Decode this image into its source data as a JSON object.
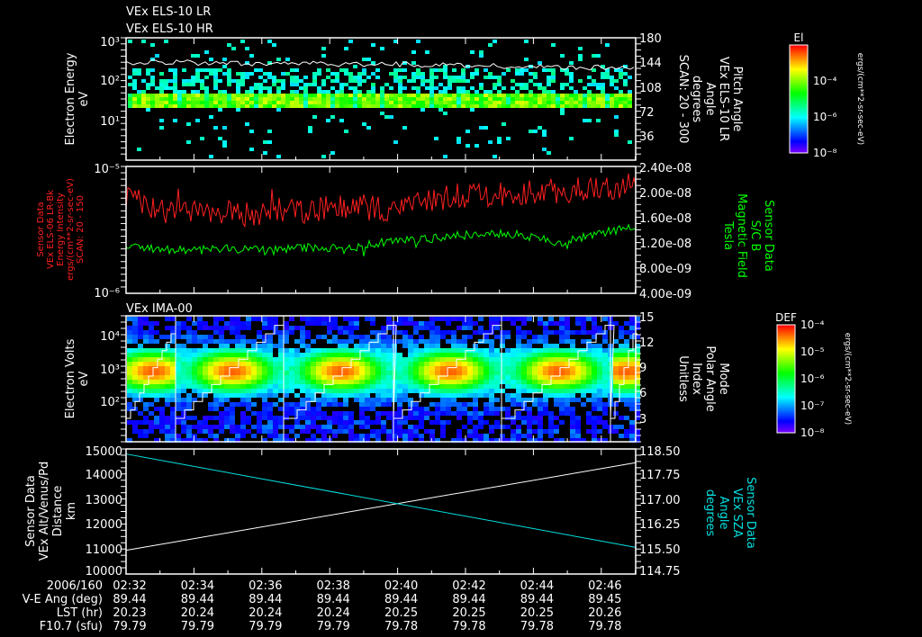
{
  "titles": {
    "line1": "VEx ELS-10 LR",
    "line2": "VEx ELS-10 HR",
    "panel3": "VEx IMA-00"
  },
  "colors": {
    "red": "#ff2020",
    "green": "#00ff00",
    "cyan": "#00e0e0",
    "white": "#ffffff"
  },
  "chart_data": [
    {
      "type": "heatmap",
      "name": "ELS electron spectrogram",
      "ylabel": [
        "Electron Energy",
        "eV"
      ],
      "yticks": [
        "10³",
        "10²",
        "10¹"
      ],
      "ylim_log10": [
        0,
        3
      ],
      "right_label": [
        "Pitch Angle",
        "VEx ELS-10 LR",
        "Angle",
        "degrees",
        "SCAN: 20 - 300"
      ],
      "right_ticks": [
        "180",
        "144",
        "108",
        "72",
        "36"
      ],
      "band_eV": [
        20,
        45
      ],
      "upper_line_eV": [
        240,
        250,
        245,
        235,
        240,
        230,
        225,
        230,
        220,
        215,
        205,
        200,
        190,
        185,
        180
      ],
      "colorbar": {
        "title": "El",
        "ticks": [
          "10⁻⁴",
          "10⁻⁶",
          "10⁻⁸"
        ],
        "label": "ergs/(cm**2-sr-sec-eV)"
      }
    },
    {
      "type": "line",
      "name": "ELS energy intensity and magnetic field",
      "left_label": [
        "Sensor Data",
        "VEx ELS-06 LR-Bk",
        "Energy Intensity",
        "ergs/(cm**2-sr-sec-eV)",
        "SCAN: 20 - 150"
      ],
      "left_ticks": [
        "10⁻⁵",
        "10⁻⁶"
      ],
      "right_label": [
        "Sensor Data",
        "S/C B",
        "Magnetic Field",
        "Tesla"
      ],
      "right_ticks": [
        "2.40e-08",
        "2.00e-08",
        "1.60e-08",
        "1.20e-08",
        "8.00e-09",
        "4.00e-09"
      ],
      "series": [
        {
          "name": "Energy Intensity",
          "color": "red",
          "axis": "left",
          "values": [
            5.5e-06,
            4.5e-06,
            4.8e-06,
            4.2e-06,
            4.5e-06,
            4.3e-06,
            5e-06,
            4.6e-06,
            5.2e-06,
            5.8e-06,
            6e-06,
            6.3e-06,
            6.5e-06,
            6.8e-06,
            7.2e-06
          ]
        },
        {
          "name": "Magnetic Field",
          "color": "green",
          "axis": "right",
          "values": [
            1.15e-08,
            1.1e-08,
            1.08e-08,
            1.1e-08,
            1.07e-08,
            1.12e-08,
            1.1e-08,
            1.2e-08,
            1.25e-08,
            1.3e-08,
            1.35e-08,
            1.3e-08,
            1.2e-08,
            1.35e-08,
            1.45e-08
          ]
        }
      ]
    },
    {
      "type": "heatmap",
      "name": "IMA ion spectrogram",
      "ylabel": [
        "Electron Volts",
        "eV"
      ],
      "yticks": [
        "10⁴",
        "10³",
        "10²"
      ],
      "right_label": [
        "Mode",
        "Polar Angle",
        "Index",
        "Unitless"
      ],
      "right_ticks": [
        "15",
        "12",
        "9",
        "6",
        "3"
      ],
      "peak_eV": 1000,
      "colorbar": {
        "title": "DEF",
        "ticks": [
          "10⁻⁴",
          "10⁻⁵",
          "10⁻⁶",
          "10⁻⁷",
          "10⁻⁸"
        ],
        "label": "ergs/(cm**2-sr-sec-eV)"
      }
    },
    {
      "type": "line",
      "name": "Altitude and SZA",
      "left_label": [
        "Sensor Data",
        "VEx Alt/Venus/Pd",
        "Distance",
        "km"
      ],
      "left_ticks": [
        "15000",
        "14000",
        "13000",
        "12000",
        "11000",
        "10000"
      ],
      "ylim": [
        10000,
        15000
      ],
      "right_label": [
        "Sensor Data",
        "VEx SZA",
        "Angle",
        "degrees"
      ],
      "right_ticks": [
        "118.50",
        "117.75",
        "117.00",
        "116.25",
        "115.50",
        "114.75"
      ],
      "ylim_right": [
        114.75,
        118.5
      ],
      "series": [
        {
          "name": "Altitude",
          "color": "white",
          "axis": "left",
          "values": [
            10950,
            14450
          ]
        },
        {
          "name": "SZA",
          "color": "cyan",
          "axis": "right",
          "values": [
            118.35,
            115.55
          ]
        }
      ]
    }
  ],
  "time_axis": {
    "header": "2006/160",
    "ticks": [
      "02:32",
      "02:34",
      "02:36",
      "02:38",
      "02:40",
      "02:42",
      "02:44",
      "02:46"
    ],
    "rows": [
      {
        "label": "V-E Ang (deg)",
        "values": [
          "89.44",
          "89.44",
          "89.44",
          "89.44",
          "89.44",
          "89.44",
          "89.44",
          "89.45"
        ]
      },
      {
        "label": "LST (hr)",
        "values": [
          "20.23",
          "20.24",
          "20.24",
          "20.24",
          "20.25",
          "20.25",
          "20.25",
          "20.26"
        ]
      },
      {
        "label": "F10.7 (sfu)",
        "values": [
          "79.79",
          "79.79",
          "79.79",
          "79.79",
          "79.78",
          "79.78",
          "79.78",
          "79.78"
        ]
      }
    ]
  }
}
